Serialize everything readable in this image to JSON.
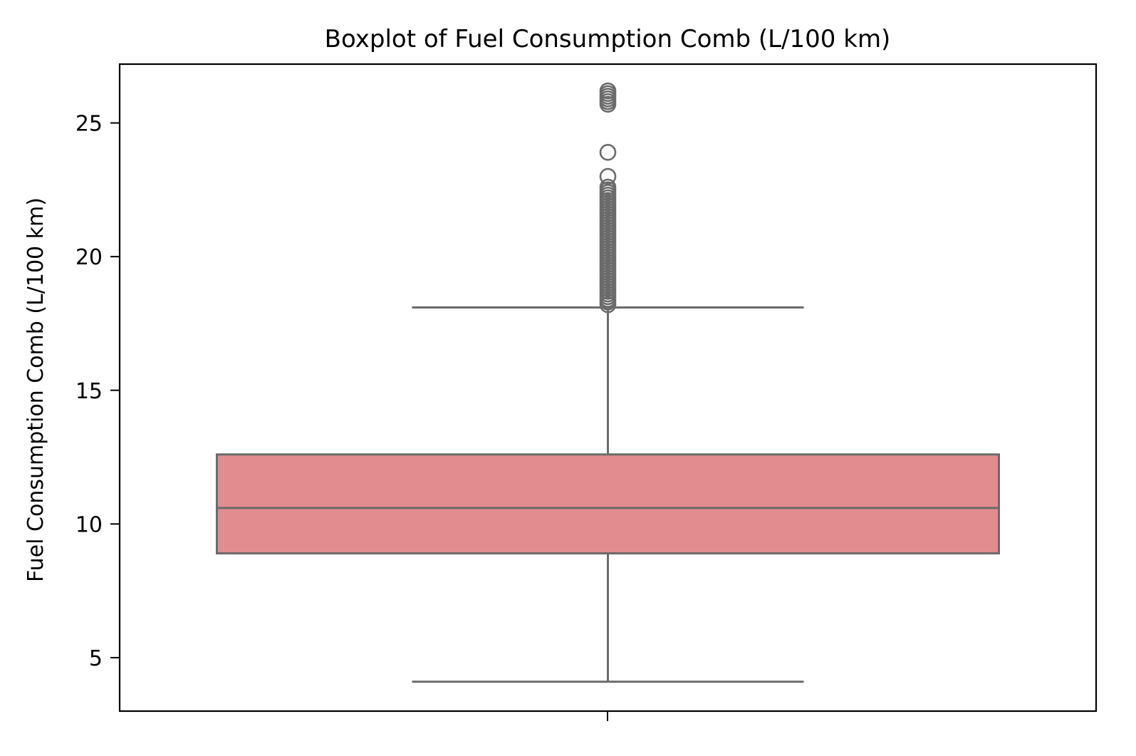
{
  "chart_data": {
    "type": "box",
    "title": "Boxplot of Fuel Consumption Comb (L/100 km)",
    "xlabel": "",
    "ylabel": "Fuel Consumption Comb (L/100 km)",
    "ylim": [
      3.0,
      27.2
    ],
    "yticks": [
      5,
      10,
      15,
      20,
      25
    ],
    "grid": false,
    "box": {
      "whisker_low": 4.1,
      "q1": 8.9,
      "median": 10.6,
      "q3": 12.6,
      "whisker_high": 18.1,
      "outliers": [
        18.2,
        18.3,
        18.4,
        18.5,
        18.6,
        18.7,
        18.8,
        18.9,
        19.0,
        19.1,
        19.2,
        19.3,
        19.4,
        19.5,
        19.6,
        19.7,
        19.8,
        19.9,
        20.0,
        20.1,
        20.2,
        20.3,
        20.4,
        20.5,
        20.6,
        20.7,
        20.8,
        20.9,
        21.0,
        21.1,
        21.2,
        21.3,
        21.4,
        21.5,
        21.6,
        21.7,
        21.8,
        21.9,
        22.0,
        22.1,
        22.2,
        22.3,
        22.4,
        22.5,
        22.6,
        23.0,
        23.9,
        25.7,
        25.8,
        25.9,
        26.0,
        26.1,
        26.2
      ]
    },
    "colors": {
      "box_fill": "#e28c8f",
      "line": "#6b6b6b",
      "axes": "#000000"
    }
  }
}
